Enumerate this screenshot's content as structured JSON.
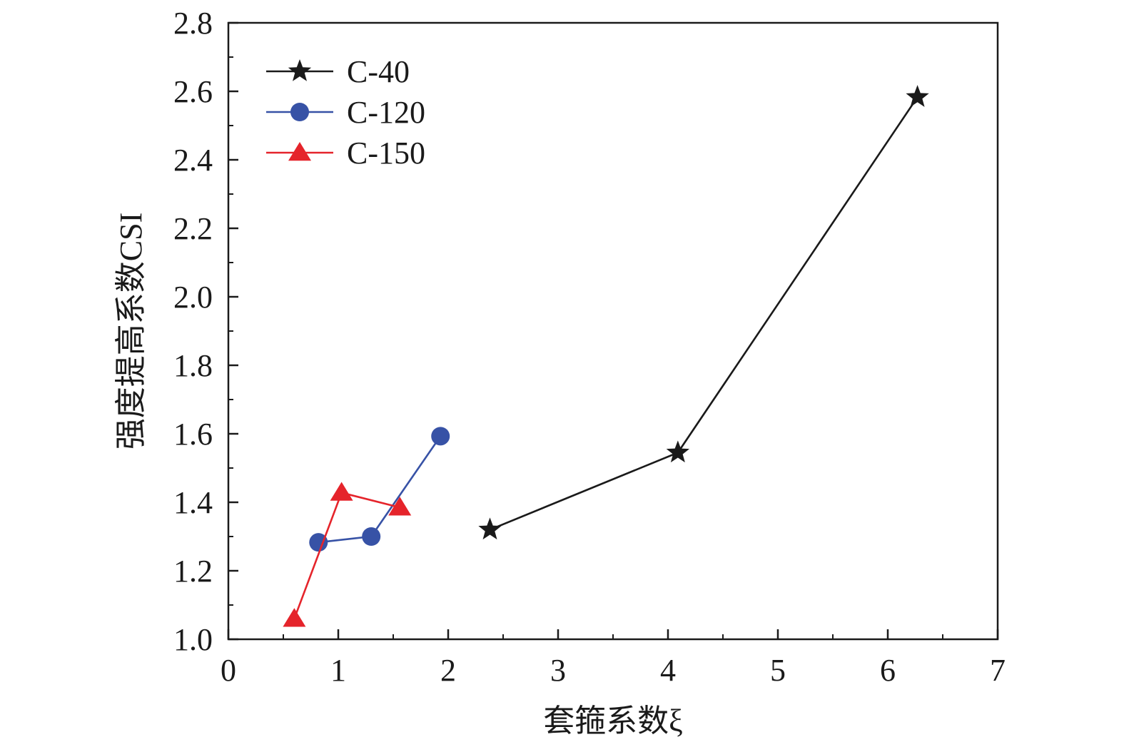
{
  "chart_data": {
    "type": "line",
    "xlabel": "套箍系数ξ",
    "ylabel": "强度提高系数CSI",
    "xlim": [
      0,
      7
    ],
    "ylim": [
      1.0,
      2.8
    ],
    "x_ticks": [
      "0",
      "1",
      "2",
      "3",
      "4",
      "5",
      "6",
      "7"
    ],
    "y_ticks": [
      "1.0",
      "1.2",
      "1.4",
      "1.6",
      "1.8",
      "2.0",
      "2.2",
      "2.4",
      "2.6",
      "2.8"
    ],
    "grid": false,
    "legend_position": "top-left",
    "series": [
      {
        "name": "C-40",
        "color": "#1a1a1a",
        "marker": "star",
        "points": [
          [
            2.38,
            1.32
          ],
          [
            4.09,
            1.545
          ],
          [
            6.27,
            2.583
          ]
        ]
      },
      {
        "name": "C-120",
        "color": "#3752a6",
        "marker": "circle",
        "points": [
          [
            0.82,
            1.283
          ],
          [
            1.3,
            1.3
          ],
          [
            1.93,
            1.593
          ]
        ]
      },
      {
        "name": "C-150",
        "color": "#e5242b",
        "marker": "triangle",
        "points": [
          [
            0.6,
            1.06
          ],
          [
            1.03,
            1.428
          ],
          [
            1.56,
            1.385
          ]
        ]
      }
    ]
  }
}
